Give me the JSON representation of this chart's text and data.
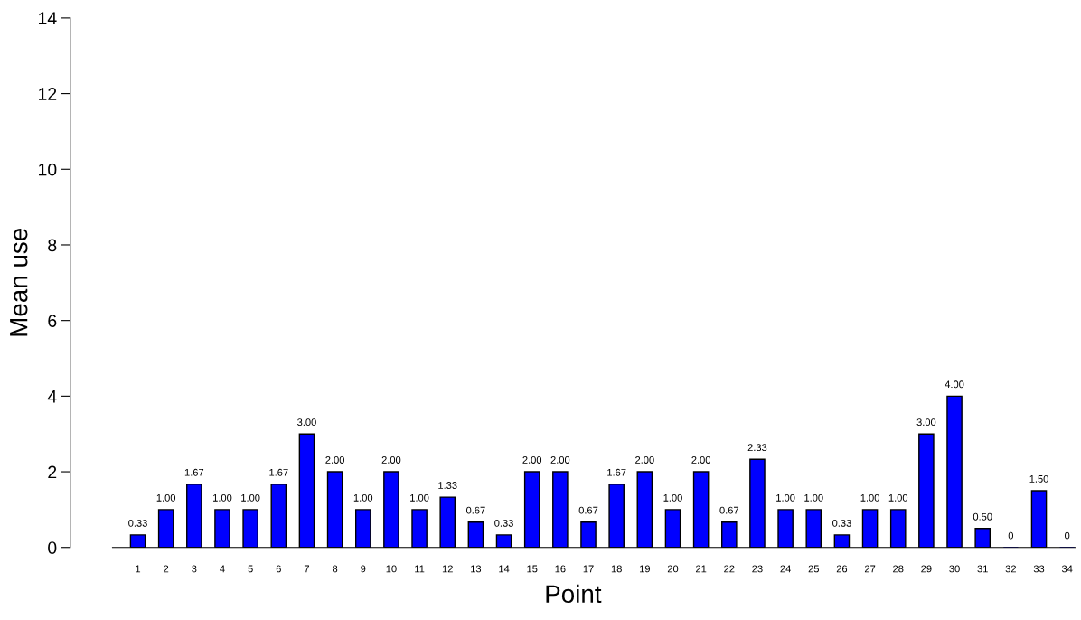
{
  "chart_data": {
    "type": "bar",
    "xlabel": "Point",
    "ylabel": "Mean use",
    "categories": [
      "1",
      "2",
      "3",
      "4",
      "5",
      "6",
      "7",
      "8",
      "9",
      "10",
      "11",
      "12",
      "13",
      "14",
      "15",
      "16",
      "17",
      "18",
      "19",
      "20",
      "21",
      "22",
      "23",
      "24",
      "25",
      "26",
      "27",
      "28",
      "29",
      "30",
      "31",
      "32",
      "33",
      "34"
    ],
    "values": [
      0.33,
      1.0,
      1.67,
      1.0,
      1.0,
      1.67,
      3.0,
      2.0,
      1.0,
      2.0,
      1.0,
      1.33,
      0.67,
      0.33,
      2.0,
      2.0,
      0.67,
      1.67,
      2.0,
      1.0,
      2.0,
      0.67,
      2.33,
      1.0,
      1.0,
      0.33,
      1.0,
      1.0,
      3.0,
      4.0,
      0.5,
      0,
      1.5,
      0
    ],
    "value_labels": [
      "0.33",
      "1.00",
      "1.67",
      "1.00",
      "1.00",
      "1.67",
      "3.00",
      "2.00",
      "1.00",
      "2.00",
      "1.00",
      "1.33",
      "0.67",
      "0.33",
      "2.00",
      "2.00",
      "0.67",
      "1.67",
      "2.00",
      "1.00",
      "2.00",
      "0.67",
      "2.33",
      "1.00",
      "1.00",
      "0.33",
      "1.00",
      "1.00",
      "3.00",
      "4.00",
      "0.50",
      "0",
      "1.50",
      "0"
    ],
    "color": "#0000ff",
    "ylim": [
      0,
      14
    ],
    "yticks": [
      0,
      2,
      4,
      6,
      8,
      10,
      12,
      14
    ],
    "grid": false,
    "legend": false
  }
}
